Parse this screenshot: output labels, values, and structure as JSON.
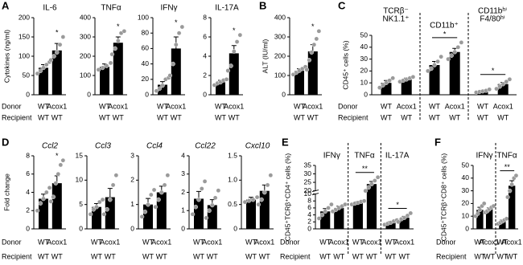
{
  "chart_data": [
    {
      "type": "bar",
      "panel": "A",
      "title": "IL-6",
      "ylabel": "Cytokines (ng/ml)",
      "donor_label": "Donor",
      "recipient_label": "Recipient",
      "ylim": [
        0,
        200
      ],
      "yticks": [
        0,
        50,
        100,
        150,
        200
      ],
      "groups": [
        {
          "categories": [
            "WT",
            "Acox1"
          ],
          "recipient": [
            "WT",
            "WT"
          ],
          "values": [
            70,
            115
          ],
          "errors": [
            8,
            18
          ],
          "points": [
            [
              55,
              62,
              70,
              78,
              85
            ],
            [
              90,
              100,
              110,
              130,
              150
            ]
          ],
          "significance": "*"
        }
      ]
    },
    {
      "type": "bar",
      "title": "TNFα",
      "ylim": [
        0,
        400
      ],
      "yticks": [
        0,
        100,
        200,
        300,
        400
      ],
      "groups": [
        {
          "categories": [
            "WT",
            "Acox1"
          ],
          "recipient": [
            "WT",
            "WT"
          ],
          "values": [
            145,
            270
          ],
          "errors": [
            15,
            30
          ],
          "points": [
            [
              130,
              140,
              150,
              165
            ],
            [
              210,
              240,
              280,
              320,
              330
            ]
          ],
          "significance": "*"
        }
      ]
    },
    {
      "type": "bar",
      "title": "IFNγ",
      "ylim": [
        0,
        100
      ],
      "yticks": [
        0,
        20,
        40,
        60,
        80,
        100
      ],
      "groups": [
        {
          "categories": [
            "WT",
            "Acox1"
          ],
          "recipient": [
            "WT",
            "WT"
          ],
          "values": [
            13,
            60
          ],
          "errors": [
            4,
            15
          ],
          "points": [
            [
              5,
              8,
              12,
              20,
              22
            ],
            [
              25,
              40,
              65,
              80,
              88
            ]
          ],
          "significance": "*"
        }
      ]
    },
    {
      "type": "bar",
      "title": "IL-17A",
      "ylim": [
        0,
        8
      ],
      "yticks": [
        0,
        2,
        4,
        6,
        8
      ],
      "groups": [
        {
          "categories": [
            "WT",
            "Acox1"
          ],
          "recipient": [
            "WT",
            "WT"
          ],
          "values": [
            1.3,
            4.3
          ],
          "errors": [
            0.2,
            0.8
          ],
          "points": [
            [
              1,
              1.2,
              1.3,
              1.5,
              1.6
            ],
            [
              2.5,
              3,
              4.5,
              5.5,
              6.2
            ]
          ],
          "significance": "*"
        }
      ]
    },
    {
      "type": "bar",
      "panel": "B",
      "ylabel": "ALT (IU/ml)",
      "ylim": [
        0,
        400
      ],
      "yticks": [
        0,
        100,
        200,
        300,
        400
      ],
      "groups": [
        {
          "categories": [
            "WT",
            "Acox1"
          ],
          "recipient": [
            "WT",
            "WT"
          ],
          "values": [
            125,
            225
          ],
          "errors": [
            10,
            35
          ],
          "points": [
            [
              105,
              115,
              125,
              135,
              145
            ],
            [
              130,
              180,
              220,
              260,
              290,
              330
            ]
          ],
          "significance": "*"
        }
      ]
    },
    {
      "type": "bar",
      "panel": "C",
      "ylabel": "CD45⁺ cells (%)",
      "donor_label": "Donor",
      "recipient_label": "Recipient",
      "ylim": [
        0,
        50
      ],
      "yticks": [
        0,
        10,
        20,
        30,
        40,
        50
      ],
      "groups": [
        {
          "label": [
            "TCRβ⁻",
            "NK1.1⁺"
          ],
          "categories": [
            "WT",
            "Acox1"
          ],
          "recipient": [
            "WT",
            "WT"
          ],
          "values": [
            10,
            13
          ],
          "errors": [
            2,
            1
          ],
          "points": [
            [
              6,
              8,
              10,
              12,
              14
            ],
            [
              11,
              12,
              13,
              14,
              15
            ]
          ]
        },
        {
          "label": [
            "CD11b⁺"
          ],
          "categories": [
            "WT",
            "Acox1"
          ],
          "recipient": [
            "WT",
            "WT"
          ],
          "values": [
            25,
            36
          ],
          "errors": [
            3,
            3
          ],
          "points": [
            [
              20,
              22,
              25,
              28,
              32
            ],
            [
              30,
              33,
              36,
              40,
              44
            ]
          ],
          "significance": "*"
        },
        {
          "label": [
            "CD11bʰⁱ",
            "F4/80ʰⁱ"
          ],
          "categories": [
            "WT",
            "Acox1"
          ],
          "recipient": [
            "WT",
            "WT"
          ],
          "values": [
            3,
            9
          ],
          "errors": [
            0.7,
            1.5
          ],
          "points": [
            [
              2,
              2.5,
              3,
              3.5,
              4.5
            ],
            [
              5,
              7,
              9,
              11,
              13
            ]
          ],
          "significance": "*"
        }
      ]
    },
    {
      "type": "bar",
      "panel": "D",
      "title": "Ccl2",
      "ylabel": "Fold change",
      "donor_label": "Donor",
      "recipient_label": "Recipient",
      "ylim": [
        0,
        8
      ],
      "yticks": [
        0,
        2,
        4,
        6,
        8
      ],
      "groups": [
        {
          "categories": [
            "WT",
            "Acox1"
          ],
          "recipient": [
            "WT",
            "WT"
          ],
          "values": [
            3.3,
            5
          ],
          "errors": [
            0.5,
            0.8
          ],
          "points": [
            [
              2,
              2.8,
              3.3,
              4,
              4.5
            ],
            [
              3,
              3.5,
              5,
              6,
              7,
              7.5
            ]
          ],
          "significance": "*"
        }
      ]
    },
    {
      "type": "bar",
      "title": "Ccl3",
      "ylim": [
        0,
        15
      ],
      "yticks": [
        0,
        5,
        10,
        15
      ],
      "groups": [
        {
          "categories": [
            "WT",
            "Acox1"
          ],
          "recipient": [
            "WT",
            "WT"
          ],
          "values": [
            4.5,
            6.5
          ],
          "errors": [
            0.7,
            1.8
          ],
          "points": [
            [
              3,
              4,
              4.5,
              5.5,
              6
            ],
            [
              3,
              4,
              6,
              9,
              11
            ]
          ]
        }
      ]
    },
    {
      "type": "bar",
      "title": "Ccl4",
      "ylim": [
        0,
        3
      ],
      "yticks": [
        0,
        1,
        2,
        3
      ],
      "groups": [
        {
          "categories": [
            "WT",
            "Acox1"
          ],
          "recipient": [
            "WT",
            "WT"
          ],
          "values": [
            1.0,
            1.5
          ],
          "errors": [
            0.25,
            0.25
          ],
          "points": [
            [
              0.5,
              0.7,
              1.0,
              1.4,
              1.6
            ],
            [
              0.9,
              1.2,
              1.5,
              1.8,
              2.2
            ]
          ]
        }
      ]
    },
    {
      "type": "bar",
      "title": "Ccl22",
      "ylim": [
        0,
        4
      ],
      "yticks": [
        0,
        1,
        2,
        3,
        4
      ],
      "groups": [
        {
          "categories": [
            "WT",
            "Acox1"
          ],
          "recipient": [
            "WT",
            "WT"
          ],
          "values": [
            1.65,
            1.3
          ],
          "errors": [
            0.4,
            0.3
          ],
          "points": [
            [
              0.8,
              1.2,
              1.6,
              2.2,
              2.6
            ],
            [
              0.6,
              1,
              1.3,
              1.7,
              2.1
            ]
          ]
        }
      ]
    },
    {
      "type": "bar",
      "title": "Cxcl10",
      "ylim": [
        0,
        1.5
      ],
      "yticks": [
        0,
        0.5,
        {
          "value": 1,
          "label": "1.0"
        },
        1.5
      ],
      "groups": [
        {
          "categories": [
            "WT",
            "Acox1"
          ],
          "recipient": [
            "WT",
            "WT"
          ],
          "values": [
            0.6,
            0.78
          ],
          "errors": [
            0.05,
            0.12
          ],
          "points": [
            [
              0.55,
              0.58,
              0.6,
              0.65
            ],
            [
              0.5,
              0.6,
              0.75,
              0.9,
              1.1
            ]
          ]
        }
      ]
    },
    {
      "type": "bar",
      "panel": "E",
      "ylabel": "CD45⁺TCRβ⁺CD4⁺ cells (%)",
      "donor_label": "Donor",
      "recipient_label": "Recipient",
      "ylim": [
        0,
        35
      ],
      "ybreak": [
        10,
        20
      ],
      "yticks": [
        0,
        2,
        4,
        6,
        8,
        10,
        20,
        25,
        30,
        35
      ],
      "groups": [
        {
          "label": [
            "IFNγ"
          ],
          "categories": [
            "WT",
            "Acox1"
          ],
          "recipient": [
            "WT",
            "WT"
          ],
          "values": [
            5,
            6
          ],
          "errors": [
            0.8,
            0.5
          ],
          "points": [
            [
              3,
              4,
              5,
              6,
              7
            ],
            [
              5,
              5.5,
              6,
              6.5,
              7
            ]
          ]
        },
        {
          "label": [
            "TNFα"
          ],
          "categories": [
            "WT",
            "Acox1"
          ],
          "recipient": [
            "WT",
            "WT"
          ],
          "values": [
            7.5,
            24
          ],
          "errors": [
            0.3,
            1.5
          ],
          "points": [
            [
              7,
              7.3,
              7.5,
              7.8,
              8
            ],
            [
              20,
              22,
              24,
              26,
              28
            ]
          ],
          "significance": "**"
        },
        {
          "label": [
            "IL-17A"
          ],
          "categories": [
            "WT",
            "Acox1"
          ],
          "recipient": [
            "WT",
            "WT"
          ],
          "values": [
            1.8,
            3.2
          ],
          "errors": [
            0.3,
            0.4
          ],
          "points": [
            [
              1.2,
              1.5,
              1.8,
              2.2,
              2.5
            ],
            [
              2,
              2.8,
              3.2,
              3.8,
              4.5
            ]
          ],
          "significance": "*"
        }
      ]
    },
    {
      "type": "bar",
      "panel": "F",
      "ylabel": "CD45⁺TCRβ⁺CD8⁺ cells (%)",
      "donor_label": "Donor",
      "recipient_label": "Recipient",
      "ylim": [
        0,
        50
      ],
      "yticks": [
        0,
        10,
        20,
        30,
        40,
        50
      ],
      "groups": [
        {
          "label": [
            "IFNγ"
          ],
          "categories": [
            "WT",
            "Acox1"
          ],
          "recipient": [
            "WT",
            "WT"
          ],
          "values": [
            15,
            15.5
          ],
          "errors": [
            2,
            1
          ],
          "points": [
            [
              10,
              12,
              15,
              18,
              20
            ],
            [
              13,
              14,
              15.5,
              17,
              18
            ]
          ]
        },
        {
          "label": [
            "TNFα"
          ],
          "categories": [
            "WT",
            "Acox1"
          ],
          "recipient": [
            "WT",
            "WT"
          ],
          "values": [
            6,
            34
          ],
          "errors": [
            1,
            4
          ],
          "points": [
            [
              4,
              5,
              6,
              7,
              8
            ],
            [
              25,
              30,
              35,
              40,
              42
            ]
          ],
          "significance": "**"
        }
      ]
    }
  ]
}
